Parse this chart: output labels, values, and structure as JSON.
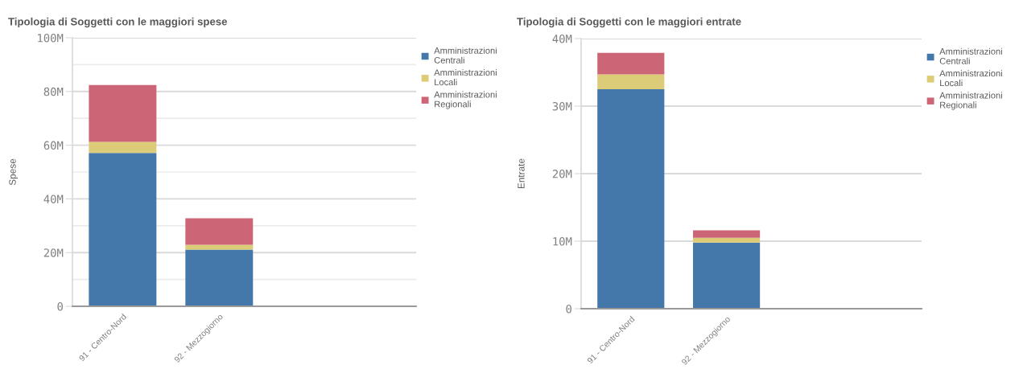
{
  "chart_data": [
    {
      "type": "bar",
      "stacked": true,
      "title": "Tipologia di Soggetti con le maggiori spese",
      "ylabel": "Spese",
      "categories": [
        "91 - Centro-Nord",
        "92 - Mezzogiorno"
      ],
      "series": [
        {
          "name": "Amministrazioni Centrali",
          "color": "#4477aa",
          "values": [
            57.1,
            21.1
          ]
        },
        {
          "name": "Amministrazioni Locali",
          "color": "#ddcc77",
          "values": [
            4.1,
            1.8
          ]
        },
        {
          "name": "Amministrazioni Regionali",
          "color": "#cc6677",
          "values": [
            21.2,
            9.9
          ]
        }
      ],
      "ylim": [
        0,
        100
      ],
      "yticks": [
        0,
        {
          "value": 10,
          "label": null
        },
        {
          "value": 20,
          "label": "20M"
        },
        {
          "value": 30,
          "label": null
        },
        {
          "value": 40,
          "label": "40M"
        },
        {
          "value": 50,
          "label": null
        },
        {
          "value": 60,
          "label": "60M"
        },
        {
          "value": 70,
          "label": null
        },
        {
          "value": 80,
          "label": "80M"
        },
        {
          "value": 90,
          "label": null
        },
        {
          "value": 100,
          "label": "100M"
        }
      ],
      "grid": "y",
      "legend": "top right"
    },
    {
      "type": "bar",
      "stacked": true,
      "title": "Tipologia di Soggetti con le maggiori entrate",
      "ylabel": "Entrate",
      "categories": [
        "91 - Centro-Nord",
        "92 - Mezzogiorno"
      ],
      "series": [
        {
          "name": "Amministrazioni Centrali",
          "color": "#4477aa",
          "values": [
            32.5,
            9.8
          ]
        },
        {
          "name": "Amministrazioni Locali",
          "color": "#ddcc77",
          "values": [
            2.2,
            0.7
          ]
        },
        {
          "name": "Amministrazioni Regionali",
          "color": "#cc6677",
          "values": [
            3.2,
            1.1
          ]
        }
      ],
      "ylim": [
        0,
        40
      ],
      "yticks": [
        0,
        {
          "value": 10,
          "label": "10M"
        },
        {
          "value": 20,
          "label": "20M"
        },
        {
          "value": 30,
          "label": "30M"
        },
        {
          "value": 40,
          "label": "40M"
        }
      ],
      "grid": "y",
      "legend": "top right"
    }
  ]
}
